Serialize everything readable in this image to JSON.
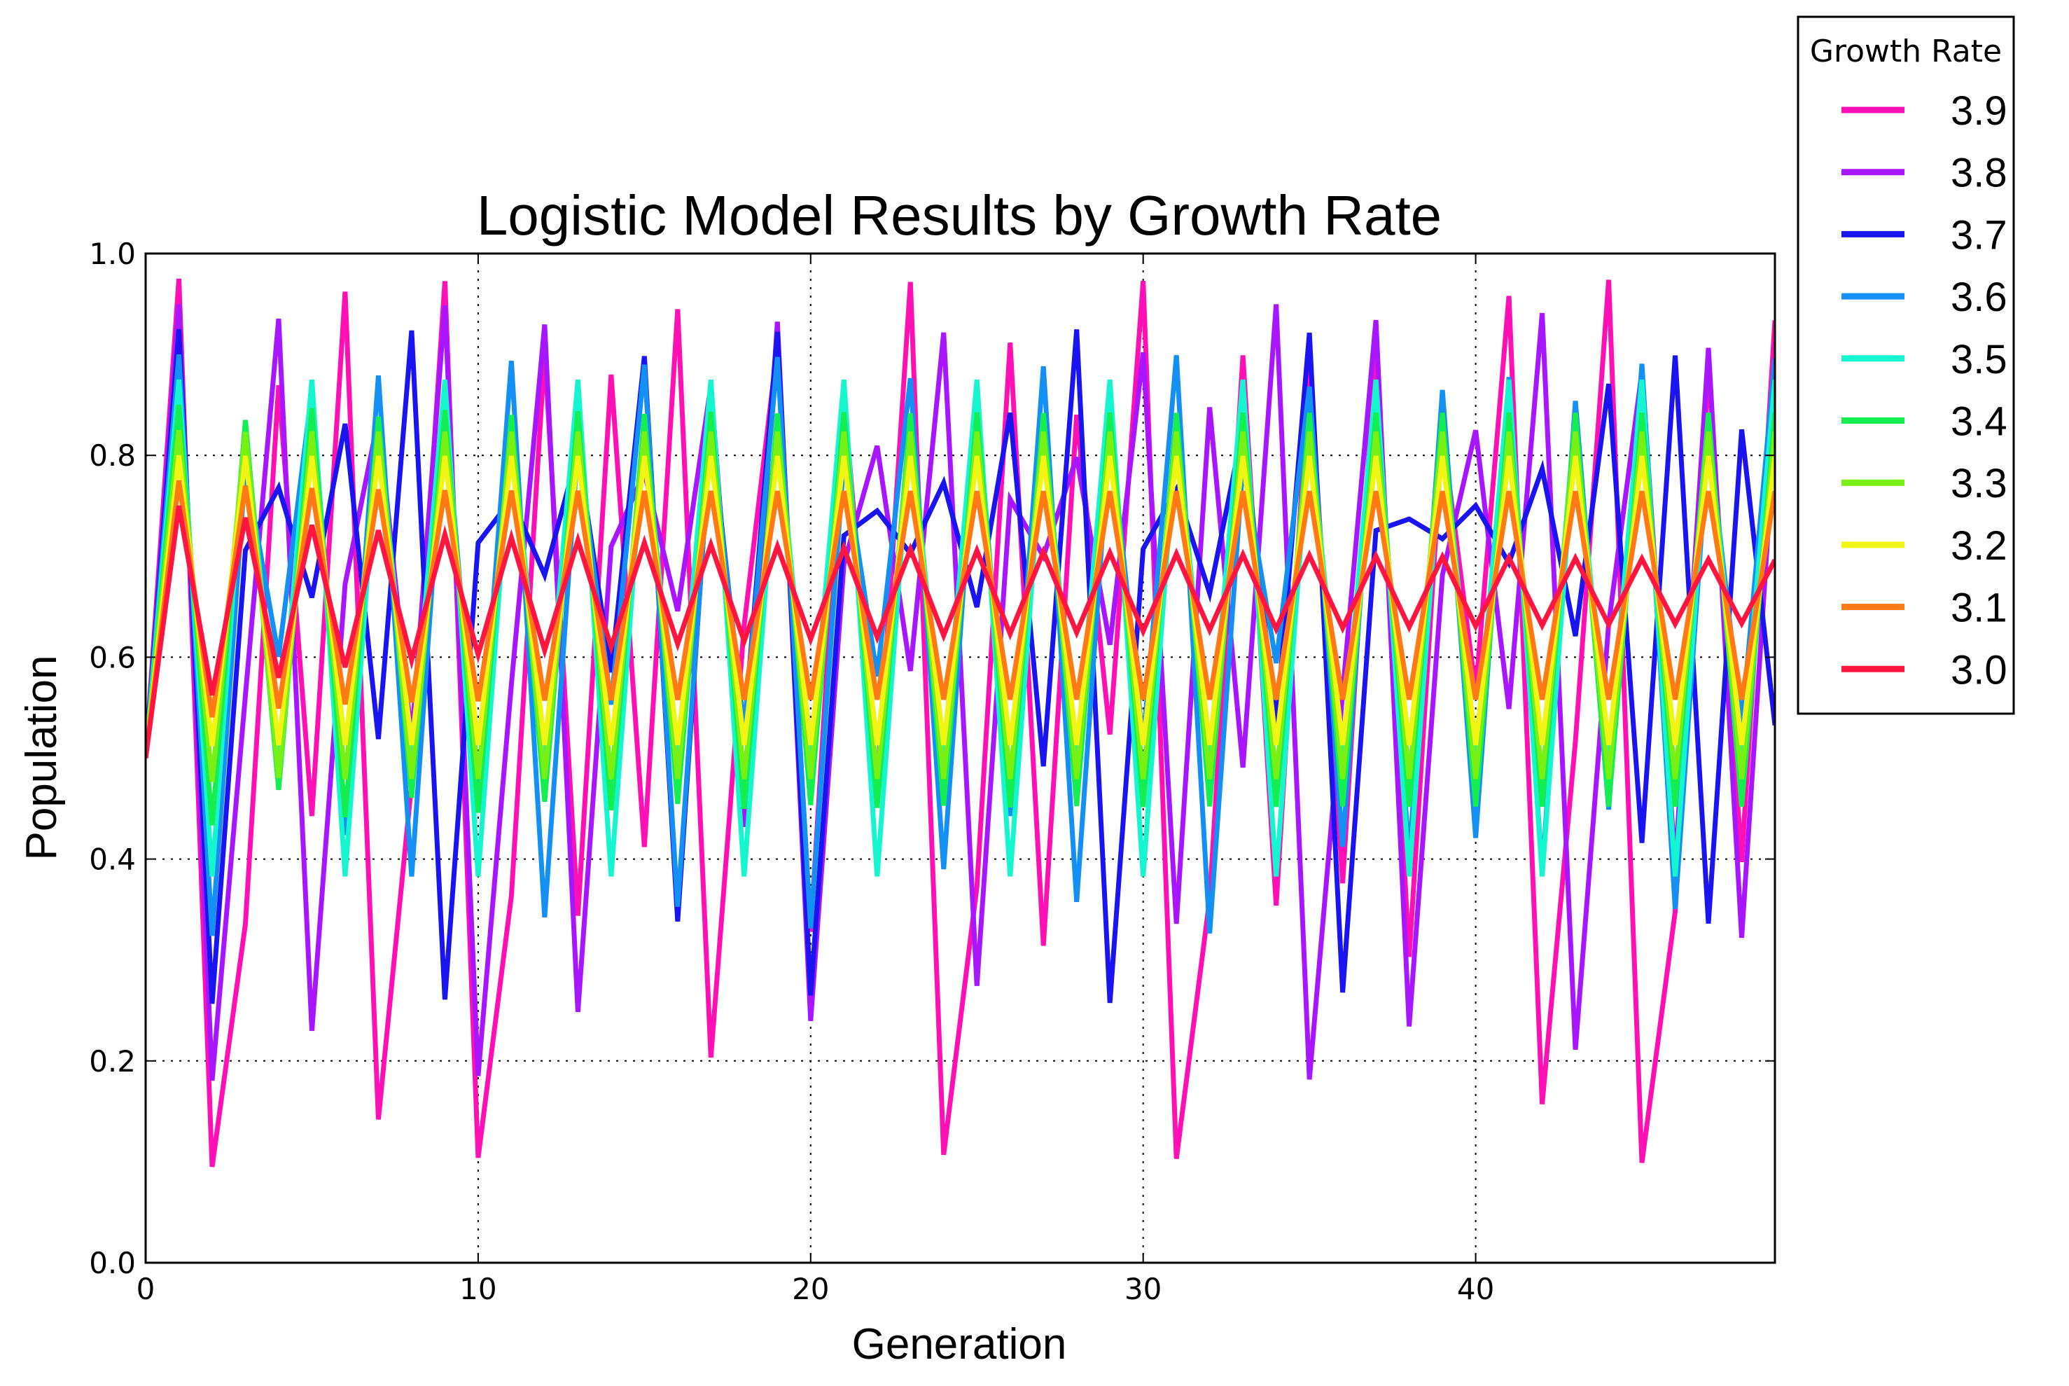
{
  "chart_data": {
    "type": "line",
    "title": "Logistic Model Results by Growth Rate",
    "xlabel": "Generation",
    "ylabel": "Population",
    "xlim": [
      0,
      49
    ],
    "ylim": [
      0.0,
      1.0
    ],
    "xticks": [
      0,
      10,
      20,
      30,
      40
    ],
    "xtick_labels": [
      "0",
      "10",
      "20",
      "30",
      "40"
    ],
    "yticks": [
      0.0,
      0.2,
      0.4,
      0.6,
      0.8,
      1.0
    ],
    "ytick_labels": [
      "0.0",
      "0.2",
      "0.4",
      "0.6",
      "0.8",
      "1.0"
    ],
    "grid": true,
    "legend": {
      "title": "Growth Rate",
      "placement": "outside-top-right"
    },
    "initial_population": 0.5,
    "generations": 50,
    "series": [
      {
        "name": "3.9",
        "growth_rate": 3.9,
        "color": "#ff10b4"
      },
      {
        "name": "3.8",
        "growth_rate": 3.8,
        "color": "#a816ff"
      },
      {
        "name": "3.7",
        "growth_rate": 3.7,
        "color": "#1a14f0"
      },
      {
        "name": "3.6",
        "growth_rate": 3.6,
        "color": "#1490f5"
      },
      {
        "name": "3.5",
        "growth_rate": 3.5,
        "color": "#14f5d0"
      },
      {
        "name": "3.4",
        "growth_rate": 3.4,
        "color": "#14ee50"
      },
      {
        "name": "3.3",
        "growth_rate": 3.3,
        "color": "#78f014"
      },
      {
        "name": "3.2",
        "growth_rate": 3.2,
        "color": "#f0f514"
      },
      {
        "name": "3.1",
        "growth_rate": 3.1,
        "color": "#ff7a14"
      },
      {
        "name": "3.0",
        "growth_rate": 3.0,
        "color": "#ff1640"
      }
    ]
  }
}
